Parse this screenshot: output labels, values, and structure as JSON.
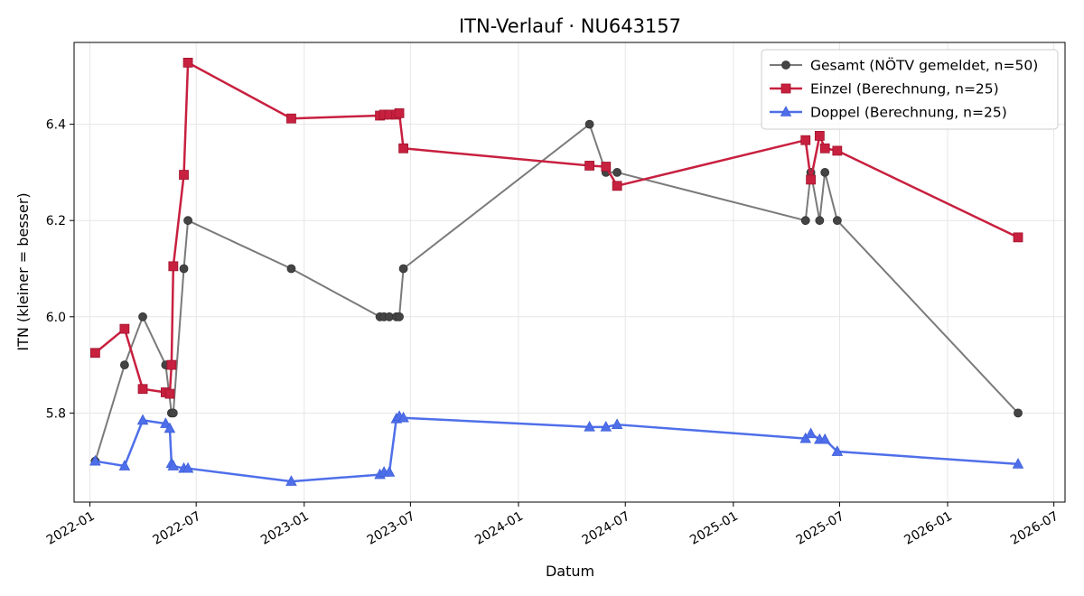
{
  "chart_data": {
    "type": "line",
    "title": "ITN-Verlauf · NU643157",
    "xlabel": "Datum",
    "ylabel": "ITN  (kleiner = besser)",
    "x_ticks": [
      "2022-01",
      "2022-07",
      "2023-01",
      "2023-07",
      "2024-01",
      "2024-07",
      "2025-01",
      "2025-07",
      "2026-01",
      "2026-07"
    ],
    "y_ticks": [
      "5.8",
      "6.0",
      "6.2",
      "6.4"
    ],
    "xlim": [
      "2021-12-05",
      "2026-07-20"
    ],
    "ylim": [
      5.615,
      6.57
    ],
    "grid": true,
    "legend_position": "top-right",
    "series": [
      {
        "name": "Gesamt (NÖTV gemeldet, n=50)",
        "color": "#555555",
        "marker": "circle",
        "points": [
          {
            "x": "2022-01-10",
            "y": 5.7
          },
          {
            "x": "2022-03-01",
            "y": 5.9
          },
          {
            "x": "2022-04-01",
            "y": 6.0
          },
          {
            "x": "2022-05-10",
            "y": 5.9
          },
          {
            "x": "2022-05-20",
            "y": 5.8
          },
          {
            "x": "2022-05-23",
            "y": 5.8
          },
          {
            "x": "2022-06-10",
            "y": 6.1
          },
          {
            "x": "2022-06-17",
            "y": 6.2
          },
          {
            "x": "2022-12-10",
            "y": 6.1
          },
          {
            "x": "2023-05-10",
            "y": 6.0
          },
          {
            "x": "2023-05-17",
            "y": 6.0
          },
          {
            "x": "2023-05-26",
            "y": 6.0
          },
          {
            "x": "2023-06-07",
            "y": 6.0
          },
          {
            "x": "2023-06-12",
            "y": 6.0
          },
          {
            "x": "2023-06-19",
            "y": 6.1
          },
          {
            "x": "2024-05-01",
            "y": 6.4
          },
          {
            "x": "2024-05-29",
            "y": 6.3
          },
          {
            "x": "2024-06-17",
            "y": 6.3
          },
          {
            "x": "2025-05-04",
            "y": 6.2
          },
          {
            "x": "2025-05-13",
            "y": 6.3
          },
          {
            "x": "2025-05-28",
            "y": 6.2
          },
          {
            "x": "2025-06-06",
            "y": 6.3
          },
          {
            "x": "2025-06-27",
            "y": 6.2
          },
          {
            "x": "2026-05-01",
            "y": 5.8
          }
        ]
      },
      {
        "name": "Einzel (Berechnung, n=25)",
        "color": "#c8203f",
        "marker": "square",
        "points": [
          {
            "x": "2022-01-10",
            "y": 5.925
          },
          {
            "x": "2022-03-01",
            "y": 5.975
          },
          {
            "x": "2022-04-01",
            "y": 5.85
          },
          {
            "x": "2022-05-10",
            "y": 5.843
          },
          {
            "x": "2022-05-17",
            "y": 5.84
          },
          {
            "x": "2022-05-20",
            "y": 5.9
          },
          {
            "x": "2022-05-23",
            "y": 6.105
          },
          {
            "x": "2022-06-10",
            "y": 6.295
          },
          {
            "x": "2022-06-17",
            "y": 6.528
          },
          {
            "x": "2022-12-10",
            "y": 6.412
          },
          {
            "x": "2023-05-10",
            "y": 6.418
          },
          {
            "x": "2023-05-17",
            "y": 6.42
          },
          {
            "x": "2023-05-26",
            "y": 6.42
          },
          {
            "x": "2023-06-07",
            "y": 6.42
          },
          {
            "x": "2023-06-12",
            "y": 6.423
          },
          {
            "x": "2023-06-19",
            "y": 6.35
          },
          {
            "x": "2024-05-01",
            "y": 6.314
          },
          {
            "x": "2024-05-29",
            "y": 6.312
          },
          {
            "x": "2024-06-17",
            "y": 6.272
          },
          {
            "x": "2025-05-04",
            "y": 6.367
          },
          {
            "x": "2025-05-13",
            "y": 6.285
          },
          {
            "x": "2025-05-28",
            "y": 6.376
          },
          {
            "x": "2025-06-06",
            "y": 6.35
          },
          {
            "x": "2025-06-27",
            "y": 6.345
          },
          {
            "x": "2026-05-01",
            "y": 6.165
          }
        ]
      },
      {
        "name": "Doppel (Berechnung, n=25)",
        "color": "#4f6fea",
        "marker": "triangle",
        "points": [
          {
            "x": "2022-01-10",
            "y": 5.7
          },
          {
            "x": "2022-03-01",
            "y": 5.69
          },
          {
            "x": "2022-04-01",
            "y": 5.785
          },
          {
            "x": "2022-05-10",
            "y": 5.778
          },
          {
            "x": "2022-05-17",
            "y": 5.768
          },
          {
            "x": "2022-05-20",
            "y": 5.695
          },
          {
            "x": "2022-05-23",
            "y": 5.69
          },
          {
            "x": "2022-06-10",
            "y": 5.685
          },
          {
            "x": "2022-06-17",
            "y": 5.685
          },
          {
            "x": "2022-12-10",
            "y": 5.658
          },
          {
            "x": "2023-05-10",
            "y": 5.672
          },
          {
            "x": "2023-05-17",
            "y": 5.677
          },
          {
            "x": "2023-05-26",
            "y": 5.677
          },
          {
            "x": "2023-06-07",
            "y": 5.788
          },
          {
            "x": "2023-06-12",
            "y": 5.793
          },
          {
            "x": "2023-06-19",
            "y": 5.79
          },
          {
            "x": "2024-05-01",
            "y": 5.771
          },
          {
            "x": "2024-05-29",
            "y": 5.771
          },
          {
            "x": "2024-06-17",
            "y": 5.776
          },
          {
            "x": "2025-05-04",
            "y": 5.747
          },
          {
            "x": "2025-05-13",
            "y": 5.757
          },
          {
            "x": "2025-05-28",
            "y": 5.745
          },
          {
            "x": "2025-06-06",
            "y": 5.745
          },
          {
            "x": "2025-06-27",
            "y": 5.72
          },
          {
            "x": "2026-05-01",
            "y": 5.694
          }
        ]
      }
    ]
  }
}
